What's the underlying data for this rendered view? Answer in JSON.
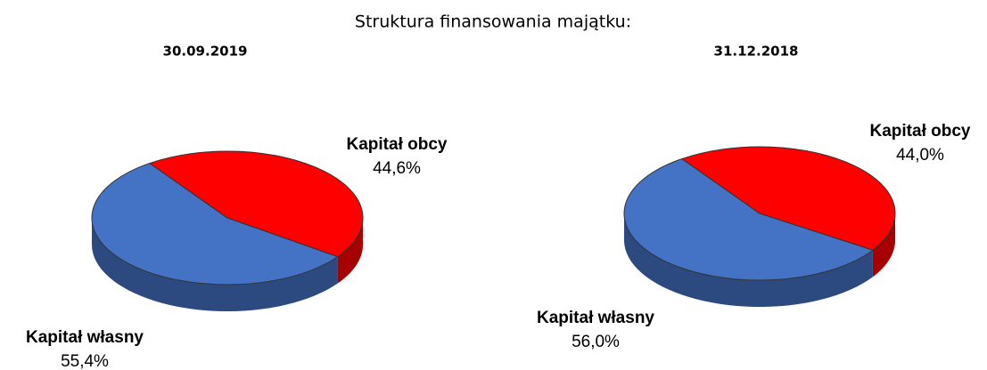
{
  "title": "Struktura finansowania majątku:",
  "chart_data": [
    {
      "type": "pie",
      "title": "30.09.2019",
      "categories": [
        "Kapitał obcy",
        "Kapitał własny"
      ],
      "values": [
        44.6,
        55.4
      ],
      "value_labels": [
        "44,6%",
        "55,4%"
      ],
      "colors": [
        "#ff0000",
        "#4472c4"
      ]
    },
    {
      "type": "pie",
      "title": "31.12.2018",
      "categories": [
        "Kapitał obcy",
        "Kapitał własny"
      ],
      "values": [
        44.0,
        56.0
      ],
      "value_labels": [
        "44,0%",
        "56,0%"
      ],
      "colors": [
        "#ff0000",
        "#4472c4"
      ]
    }
  ]
}
